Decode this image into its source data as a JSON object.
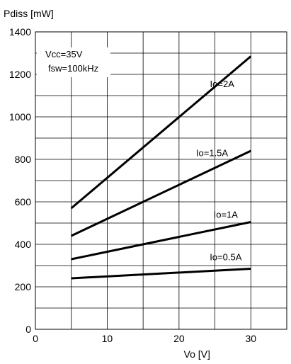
{
  "chart_data": {
    "type": "line",
    "ylabel": "Pdiss [mW]",
    "xlabel": "Vo [V]",
    "xlim": [
      0,
      35
    ],
    "ylim": [
      0,
      1400
    ],
    "x_ticks": [
      0,
      10,
      20,
      30
    ],
    "y_ticks": [
      0,
      200,
      400,
      600,
      800,
      1000,
      1200,
      1400
    ],
    "x_tick_labels": [
      "0",
      "10",
      "20",
      "30"
    ],
    "y_tick_labels": [
      "0",
      "200",
      "400",
      "600",
      "800",
      "1000",
      "1200",
      "1400"
    ],
    "x_grid_step": 5,
    "y_grid_step": 100,
    "grid": true,
    "conditions": [
      "Vcc=35V",
      "fsw=100kHz"
    ],
    "series": [
      {
        "name": "Io=2A",
        "x": [
          5,
          30
        ],
        "y": [
          570,
          1285
        ]
      },
      {
        "name": "Io=1.5A",
        "x": [
          5,
          30
        ],
        "y": [
          440,
          840
        ]
      },
      {
        "name": "Io=1A",
        "x": [
          5,
          30
        ],
        "y": [
          330,
          505
        ]
      },
      {
        "name": "Io=0.5A",
        "x": [
          5,
          30
        ],
        "y": [
          240,
          285
        ]
      }
    ]
  }
}
